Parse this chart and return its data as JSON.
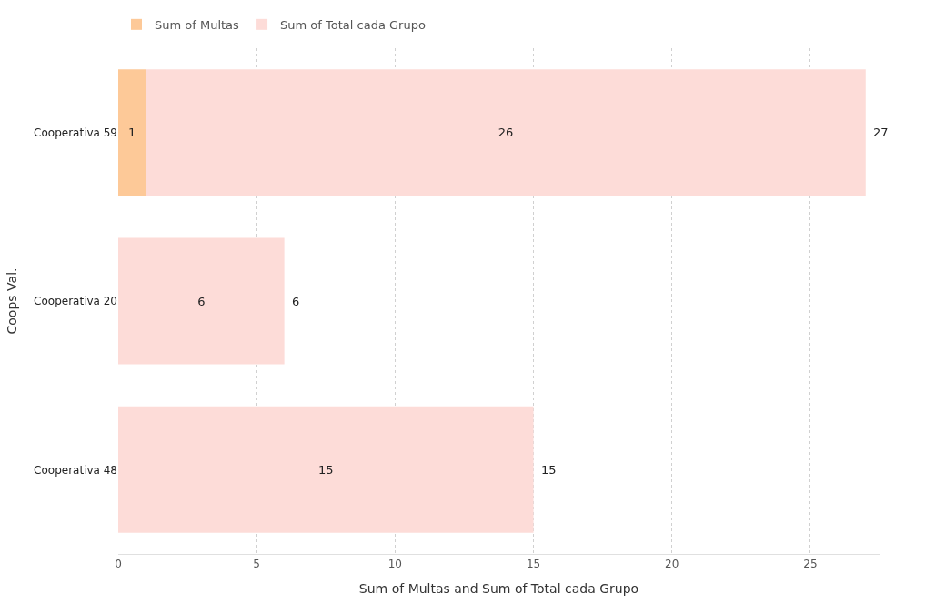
{
  "chart_data": {
    "type": "bar",
    "orientation": "horizontal",
    "stacked": true,
    "xlabel": "Sum of Multas and Sum of Total cada Grupo",
    "ylabel": "Coops Val.",
    "categories": [
      "Cooperativa 59",
      "Cooperativa 20",
      "Cooperativa 48"
    ],
    "series": [
      {
        "name": "Sum of Multas",
        "color": "#fdc998",
        "values": [
          1,
          null,
          null
        ]
      },
      {
        "name": "Sum of Total cada Grupo",
        "color": "#fddcd8",
        "values": [
          26,
          6,
          15
        ]
      }
    ],
    "totals": [
      "27",
      "6",
      "15"
    ],
    "data_labels": true,
    "xlim": [
      0,
      27.5
    ],
    "xticks": [
      0,
      5,
      10,
      15,
      20,
      25
    ],
    "grid": "x",
    "legend": "top left"
  }
}
